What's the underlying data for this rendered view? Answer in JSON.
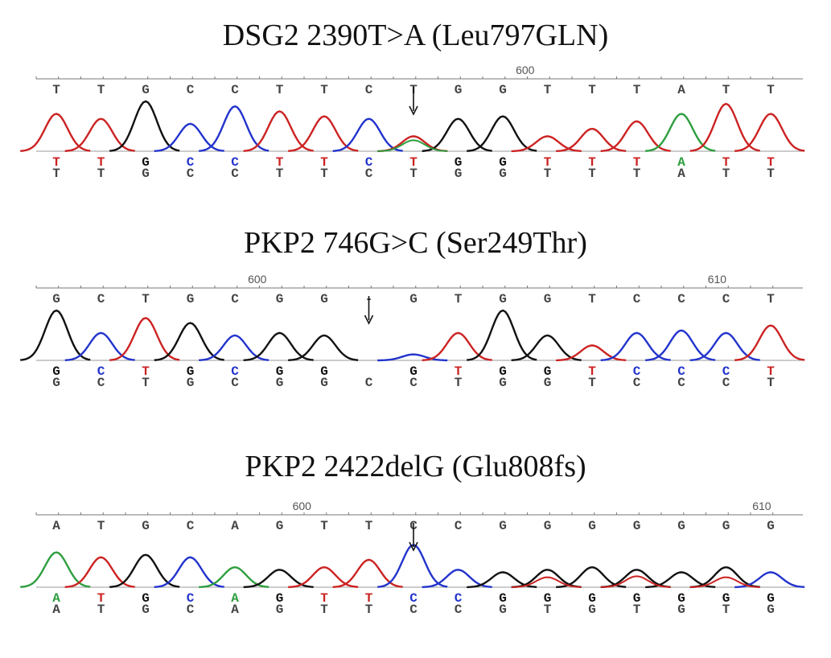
{
  "colors": {
    "A": "#2e9e3f",
    "C": "#2233cc",
    "G": "#111111",
    "T": "#cc2222"
  },
  "panels": [
    {
      "title": "DSG2 2390T>A (Leu797GLN)",
      "ruler_labels": [
        {
          "text": "600",
          "index": 10.5
        }
      ],
      "ref": [
        "T",
        "T",
        "G",
        "C",
        "C",
        "T",
        "T",
        "C",
        "T",
        "G",
        "G",
        "T",
        "T",
        "T",
        "A",
        "T",
        "T"
      ],
      "called": [
        "T",
        "T",
        "G",
        "C",
        "C",
        "T",
        "T",
        "C",
        "T",
        "G",
        "G",
        "T",
        "T",
        "T",
        "A",
        "T",
        "T"
      ],
      "bottom": [
        "T",
        "T",
        "G",
        "C",
        "C",
        "T",
        "T",
        "C",
        "T",
        "G",
        "G",
        "T",
        "T",
        "T",
        "A",
        "T",
        "T"
      ],
      "peaks": [
        {
          "b": "T",
          "h": 0.75
        },
        {
          "b": "T",
          "h": 0.65
        },
        {
          "b": "G",
          "h": 1.0
        },
        {
          "b": "C",
          "h": 0.55
        },
        {
          "b": "C",
          "h": 0.9
        },
        {
          "b": "T",
          "h": 0.8
        },
        {
          "b": "T",
          "h": 0.7
        },
        {
          "b": "C",
          "h": 0.65
        },
        {
          "b": "T",
          "h": 0.3
        },
        {
          "b": "G",
          "h": 0.65
        },
        {
          "b": "G",
          "h": 0.7
        },
        {
          "b": "T",
          "h": 0.3
        },
        {
          "b": "T",
          "h": 0.45
        },
        {
          "b": "T",
          "h": 0.6
        },
        {
          "b": "A",
          "h": 0.75
        },
        {
          "b": "T",
          "h": 0.95
        },
        {
          "b": "T",
          "h": 0.75
        }
      ],
      "minor_peaks": [
        {
          "b": "A",
          "i": 8,
          "h": 0.22
        }
      ],
      "arrow_index": 8
    },
    {
      "title": "PKP2 746G>C (Ser249Thr)",
      "ruler_labels": [
        {
          "text": "600",
          "index": 4.5
        },
        {
          "text": "610",
          "index": 14.8
        }
      ],
      "ref": [
        "G",
        "C",
        "T",
        "G",
        "C",
        "G",
        "G",
        "-",
        "G",
        "T",
        "G",
        "G",
        "T",
        "C",
        "C",
        "C",
        "T"
      ],
      "called": [
        "G",
        "C",
        "T",
        "G",
        "C",
        "G",
        "G",
        "",
        "G",
        "T",
        "G",
        "G",
        "T",
        "C",
        "C",
        "C",
        "T"
      ],
      "bottom": [
        "G",
        "C",
        "T",
        "G",
        "C",
        "G",
        "G",
        "C",
        "C",
        "T",
        "G",
        "G",
        "T",
        "C",
        "C",
        "C",
        "T"
      ],
      "peaks": [
        {
          "b": "G",
          "h": 1.0
        },
        {
          "b": "C",
          "h": 0.55
        },
        {
          "b": "T",
          "h": 0.85
        },
        {
          "b": "G",
          "h": 0.75
        },
        {
          "b": "C",
          "h": 0.5
        },
        {
          "b": "G",
          "h": 0.55
        },
        {
          "b": "G",
          "h": 0.5
        },
        {
          "b": "",
          "h": 0
        },
        {
          "b": "C",
          "h": 0.12
        },
        {
          "b": "T",
          "h": 0.55
        },
        {
          "b": "G",
          "h": 1.0
        },
        {
          "b": "G",
          "h": 0.5
        },
        {
          "b": "T",
          "h": 0.3
        },
        {
          "b": "C",
          "h": 0.55
        },
        {
          "b": "C",
          "h": 0.6
        },
        {
          "b": "C",
          "h": 0.55
        },
        {
          "b": "T",
          "h": 0.7
        }
      ],
      "minor_peaks": [],
      "arrow_index": 7
    },
    {
      "title": "PKP2 2422delG (Glu808fs)",
      "ruler_labels": [
        {
          "text": "600",
          "index": 5.5
        },
        {
          "text": "610",
          "index": 15.8
        }
      ],
      "ref": [
        "A",
        "T",
        "G",
        "C",
        "A",
        "G",
        "T",
        "T",
        "C",
        "C",
        "G",
        "G",
        "G",
        "G",
        "G",
        "G",
        "G"
      ],
      "called": [
        "A",
        "T",
        "G",
        "C",
        "A",
        "G",
        "T",
        "T",
        "C",
        "C",
        "G",
        "G",
        "G",
        "G",
        "G",
        "G",
        "G"
      ],
      "bottom": [
        "A",
        "T",
        "G",
        "C",
        "A",
        "G",
        "T",
        "T",
        "C",
        "C",
        "G",
        "T",
        "G",
        "T",
        "G",
        "T",
        "G"
      ],
      "peaks": [
        {
          "b": "A",
          "h": 0.7
        },
        {
          "b": "T",
          "h": 0.6
        },
        {
          "b": "G",
          "h": 0.65
        },
        {
          "b": "C",
          "h": 0.6
        },
        {
          "b": "A",
          "h": 0.4
        },
        {
          "b": "G",
          "h": 0.35
        },
        {
          "b": "T",
          "h": 0.4
        },
        {
          "b": "T",
          "h": 0.55
        },
        {
          "b": "C",
          "h": 0.85
        },
        {
          "b": "C",
          "h": 0.35
        },
        {
          "b": "G",
          "h": 0.3
        },
        {
          "b": "G",
          "h": 0.35
        },
        {
          "b": "G",
          "h": 0.4
        },
        {
          "b": "G",
          "h": 0.35
        },
        {
          "b": "G",
          "h": 0.3
        },
        {
          "b": "G",
          "h": 0.4
        },
        {
          "b": "C",
          "h": 0.3
        }
      ],
      "minor_peaks": [
        {
          "b": "T",
          "i": 11,
          "h": 0.2
        },
        {
          "b": "T",
          "i": 13,
          "h": 0.22
        },
        {
          "b": "T",
          "i": 15,
          "h": 0.2
        }
      ],
      "arrow_index": 8
    }
  ]
}
